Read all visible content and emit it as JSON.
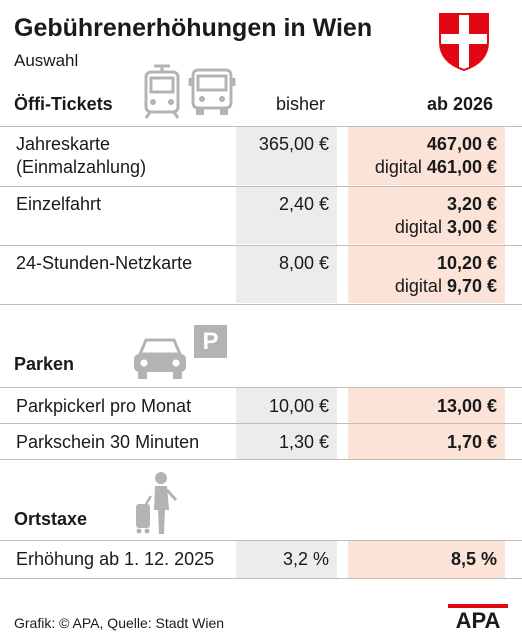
{
  "header": {
    "title": "Gebührenerhöhungen in Wien",
    "subtitle": "Auswahl"
  },
  "columns": {
    "old": "bisher",
    "new": "ab 2026"
  },
  "sections": [
    {
      "title": "Öffi-Tickets",
      "rows": [
        {
          "label": [
            "Jahreskarte",
            "(Einmalzahlung)"
          ],
          "old": "365,00 €",
          "new": "467,00 €",
          "new_digital_prefix": "digital",
          "new_digital": "461,00 €"
        },
        {
          "label": [
            "Einzelfahrt"
          ],
          "old": "2,40 €",
          "new": "3,20 €",
          "new_digital_prefix": "digital",
          "new_digital": "3,00 €"
        },
        {
          "label": [
            "24-Stunden-Netzkarte"
          ],
          "old": "8,00 €",
          "new": "10,20 €",
          "new_digital_prefix": "digital",
          "new_digital": "9,70 €"
        }
      ]
    },
    {
      "title": "Parken",
      "rows": [
        {
          "label": [
            "Parkpickerl pro Monat"
          ],
          "old": "10,00 €",
          "new": "13,00 €"
        },
        {
          "label": [
            "Parkschein 30 Minuten"
          ],
          "old": "1,30 €",
          "new": "1,70 €"
        }
      ]
    },
    {
      "title": "Ortstaxe",
      "rows": [
        {
          "label": [
            "Erhöhung ab 1. 12. 2025"
          ],
          "old": "3,2 %",
          "new": "8,5 %"
        }
      ]
    }
  ],
  "icons": [
    "vienna-coat-of-arms-icon",
    "tram-icon",
    "bus-icon",
    "car-icon",
    "parking-icon",
    "traveler-with-suitcase-icon",
    "apa-logo"
  ],
  "parking_letter": "P",
  "logo_text": "APA",
  "footer": "Grafik: © APA, Quelle: Stadt Wien",
  "colors": {
    "highlight": "#fbe3d7",
    "old_cell": "#ececec",
    "flag_red": "#e30613",
    "icon_grey": "#b3b3b3"
  },
  "chart_data": {
    "type": "table",
    "title": "Gebührenerhöhungen in Wien",
    "subtitle": "Auswahl",
    "columns": [
      "",
      "bisher",
      "ab 2026"
    ],
    "rows": [
      [
        "Jahreskarte (Einmalzahlung)",
        "365,00 €",
        "467,00 € / digital 461,00 €"
      ],
      [
        "Einzelfahrt",
        "2,40 €",
        "3,20 € / digital 3,00 €"
      ],
      [
        "24-Stunden-Netzkarte",
        "8,00 €",
        "10,20 € / digital 9,70 €"
      ],
      [
        "Parkpickerl pro Monat",
        "10,00 €",
        "13,00 €"
      ],
      [
        "Parkschein 30 Minuten",
        "1,30 €",
        "1,70 €"
      ],
      [
        "Erhöhung ab 1. 12. 2025",
        "3,2 %",
        "8,5 %"
      ]
    ]
  }
}
